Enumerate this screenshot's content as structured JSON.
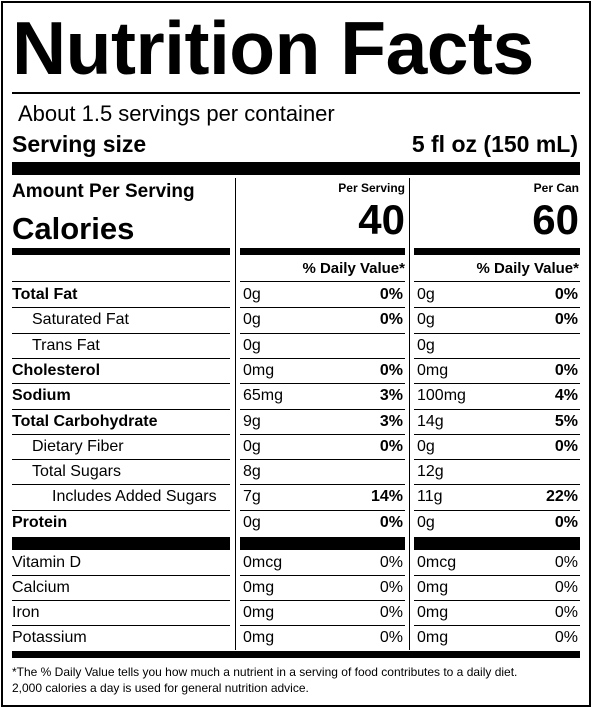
{
  "title": "Nutrition Facts",
  "servings_per_container": "About 1.5 servings per container",
  "serving_size": {
    "label": "Serving size",
    "value": "5 fl oz (150 mL)"
  },
  "amount_per_serving": "Amount Per Serving",
  "calories_label": "Calories",
  "columns": [
    {
      "header": "Per Serving",
      "calories": "40",
      "dv_header": "% Daily Value*"
    },
    {
      "header": "Per Can",
      "calories": "60",
      "dv_header": "% Daily Value*"
    }
  ],
  "nutrients": [
    {
      "name": "Total Fat",
      "bold": true,
      "indent": 0,
      "values": [
        {
          "amount": "0g",
          "dv": "0%"
        },
        {
          "amount": "0g",
          "dv": "0%"
        }
      ]
    },
    {
      "name": "Saturated Fat",
      "bold": false,
      "indent": 1,
      "values": [
        {
          "amount": "0g",
          "dv": "0%"
        },
        {
          "amount": "0g",
          "dv": "0%"
        }
      ]
    },
    {
      "name": "Trans Fat",
      "bold": false,
      "indent": 1,
      "values": [
        {
          "amount": "0g",
          "dv": ""
        },
        {
          "amount": "0g",
          "dv": ""
        }
      ]
    },
    {
      "name": "Cholesterol",
      "bold": true,
      "indent": 0,
      "values": [
        {
          "amount": "0mg",
          "dv": "0%"
        },
        {
          "amount": "0mg",
          "dv": "0%"
        }
      ]
    },
    {
      "name": "Sodium",
      "bold": true,
      "indent": 0,
      "values": [
        {
          "amount": "65mg",
          "dv": "3%"
        },
        {
          "amount": "100mg",
          "dv": "4%"
        }
      ]
    },
    {
      "name": "Total Carbohydrate",
      "bold": true,
      "indent": 0,
      "values": [
        {
          "amount": "9g",
          "dv": "3%"
        },
        {
          "amount": "14g",
          "dv": "5%"
        }
      ]
    },
    {
      "name": "Dietary Fiber",
      "bold": false,
      "indent": 1,
      "values": [
        {
          "amount": "0g",
          "dv": "0%"
        },
        {
          "amount": "0g",
          "dv": "0%"
        }
      ]
    },
    {
      "name": "Total Sugars",
      "bold": false,
      "indent": 1,
      "values": [
        {
          "amount": "8g",
          "dv": ""
        },
        {
          "amount": "12g",
          "dv": ""
        }
      ]
    },
    {
      "name": "Includes Added Sugars",
      "bold": false,
      "indent": 2,
      "values": [
        {
          "amount": "7g",
          "dv": "14%"
        },
        {
          "amount": "11g",
          "dv": "22%"
        }
      ]
    },
    {
      "name": "Protein",
      "bold": true,
      "indent": 0,
      "values": [
        {
          "amount": "0g",
          "dv": "0%"
        },
        {
          "amount": "0g",
          "dv": "0%"
        }
      ]
    }
  ],
  "vitamins": [
    {
      "name": "Vitamin D",
      "values": [
        {
          "amount": "0mcg",
          "dv": "0%"
        },
        {
          "amount": "0mcg",
          "dv": "0%"
        }
      ]
    },
    {
      "name": "Calcium",
      "values": [
        {
          "amount": "0mg",
          "dv": "0%"
        },
        {
          "amount": "0mg",
          "dv": "0%"
        }
      ]
    },
    {
      "name": "Iron",
      "values": [
        {
          "amount": "0mg",
          "dv": "0%"
        },
        {
          "amount": "0mg",
          "dv": "0%"
        }
      ]
    },
    {
      "name": "Potassium",
      "values": [
        {
          "amount": "0mg",
          "dv": "0%"
        },
        {
          "amount": "0mg",
          "dv": "0%"
        }
      ]
    }
  ],
  "footnote": [
    "*The % Daily Value tells you how much a nutrient in a serving of food contributes to a daily diet.",
    "2,000 calories a day is used for general nutrition advice."
  ]
}
